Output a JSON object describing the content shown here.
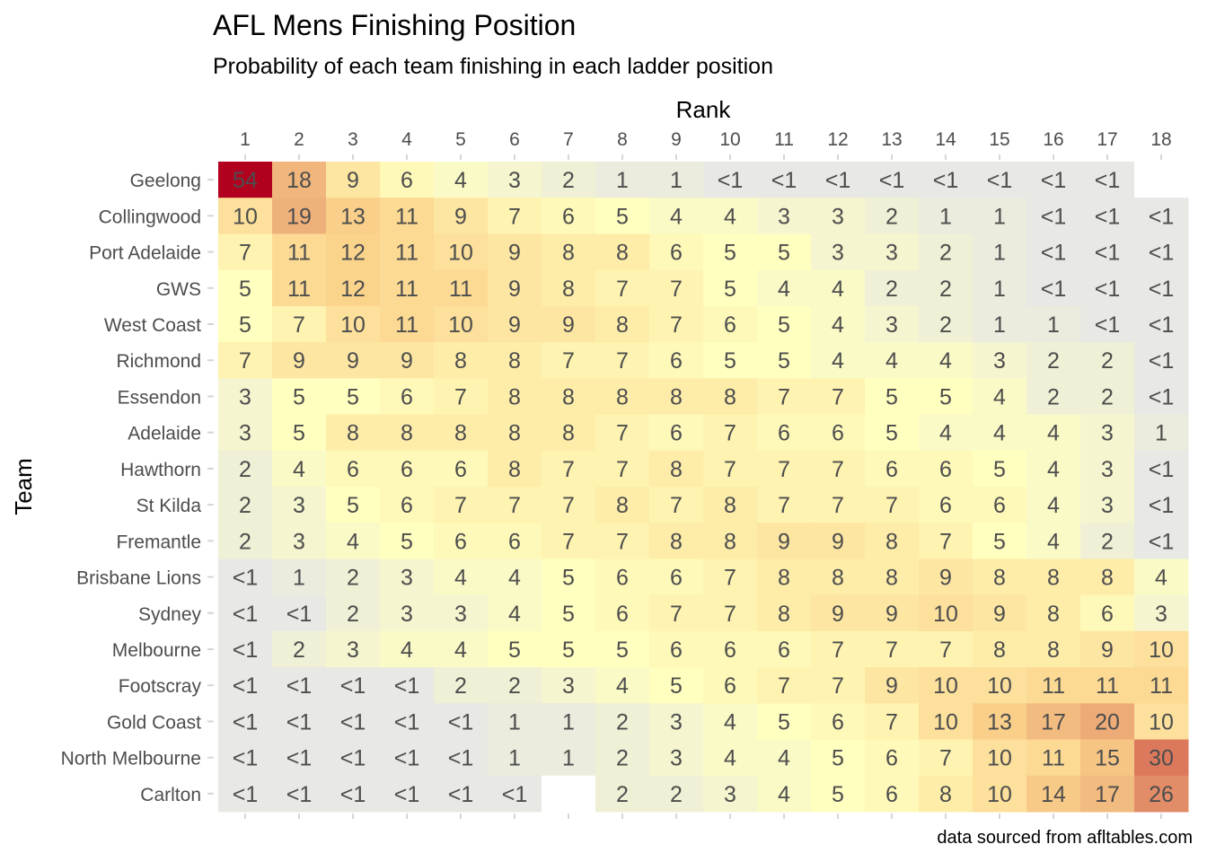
{
  "chart_data": {
    "type": "heatmap",
    "title": "AFL Mens Finishing Position",
    "subtitle": "Probability of each team finishing in each ladder position",
    "xlabel": "Rank",
    "ylabel": "Team",
    "caption": "data sourced from afltables.com",
    "x": [
      "1",
      "2",
      "3",
      "4",
      "5",
      "6",
      "7",
      "8",
      "9",
      "10",
      "11",
      "12",
      "13",
      "14",
      "15",
      "16",
      "17",
      "18"
    ],
    "y": [
      "Geelong",
      "Collingwood",
      "Port Adelaide",
      "GWS",
      "West Coast",
      "Richmond",
      "Essendon",
      "Adelaide",
      "Hawthorn",
      "St Kilda",
      "Fremantle",
      "Brisbane Lions",
      "Sydney",
      "Melbourne",
      "Footscray",
      "Gold Coast",
      "North Melbourne",
      "Carlton"
    ],
    "values": [
      [
        "54",
        "18",
        "9",
        "6",
        "4",
        "3",
        "2",
        "1",
        "1",
        "<1",
        "<1",
        "<1",
        "<1",
        "<1",
        "<1",
        "<1",
        "<1",
        ""
      ],
      [
        "10",
        "19",
        "13",
        "11",
        "9",
        "7",
        "6",
        "5",
        "4",
        "4",
        "3",
        "3",
        "2",
        "1",
        "1",
        "<1",
        "<1",
        "<1"
      ],
      [
        "7",
        "11",
        "12",
        "11",
        "10",
        "9",
        "8",
        "8",
        "6",
        "5",
        "5",
        "3",
        "3",
        "2",
        "1",
        "<1",
        "<1",
        "<1"
      ],
      [
        "5",
        "11",
        "12",
        "11",
        "11",
        "9",
        "8",
        "7",
        "7",
        "5",
        "4",
        "4",
        "2",
        "2",
        "1",
        "<1",
        "<1",
        "<1"
      ],
      [
        "5",
        "7",
        "10",
        "11",
        "10",
        "9",
        "9",
        "8",
        "7",
        "6",
        "5",
        "4",
        "3",
        "2",
        "1",
        "1",
        "<1",
        "<1"
      ],
      [
        "7",
        "9",
        "9",
        "9",
        "8",
        "8",
        "7",
        "7",
        "6",
        "5",
        "5",
        "4",
        "4",
        "4",
        "3",
        "2",
        "2",
        "<1"
      ],
      [
        "3",
        "5",
        "5",
        "6",
        "7",
        "8",
        "8",
        "8",
        "8",
        "8",
        "7",
        "7",
        "5",
        "5",
        "4",
        "2",
        "2",
        "<1"
      ],
      [
        "3",
        "5",
        "8",
        "8",
        "8",
        "8",
        "8",
        "7",
        "6",
        "7",
        "6",
        "6",
        "5",
        "4",
        "4",
        "4",
        "3",
        "1"
      ],
      [
        "2",
        "4",
        "6",
        "6",
        "6",
        "8",
        "7",
        "7",
        "8",
        "7",
        "7",
        "7",
        "6",
        "6",
        "5",
        "4",
        "3",
        "<1"
      ],
      [
        "2",
        "3",
        "5",
        "6",
        "7",
        "7",
        "7",
        "8",
        "7",
        "8",
        "7",
        "7",
        "7",
        "6",
        "6",
        "4",
        "3",
        "<1"
      ],
      [
        "2",
        "3",
        "4",
        "5",
        "6",
        "6",
        "7",
        "7",
        "8",
        "8",
        "9",
        "9",
        "8",
        "7",
        "5",
        "4",
        "2",
        "<1"
      ],
      [
        "<1",
        "1",
        "2",
        "3",
        "4",
        "4",
        "5",
        "6",
        "6",
        "7",
        "8",
        "8",
        "8",
        "9",
        "8",
        "8",
        "8",
        "4"
      ],
      [
        "<1",
        "<1",
        "2",
        "3",
        "3",
        "4",
        "5",
        "6",
        "7",
        "7",
        "8",
        "9",
        "9",
        "10",
        "9",
        "8",
        "6",
        "3"
      ],
      [
        "<1",
        "2",
        "3",
        "4",
        "4",
        "5",
        "5",
        "5",
        "6",
        "6",
        "6",
        "7",
        "7",
        "7",
        "8",
        "8",
        "9",
        "10"
      ],
      [
        "<1",
        "<1",
        "<1",
        "<1",
        "2",
        "2",
        "3",
        "4",
        "5",
        "6",
        "7",
        "7",
        "9",
        "10",
        "10",
        "11",
        "11",
        "11"
      ],
      [
        "<1",
        "<1",
        "<1",
        "<1",
        "<1",
        "1",
        "1",
        "2",
        "3",
        "4",
        "5",
        "6",
        "7",
        "10",
        "13",
        "17",
        "20",
        "10"
      ],
      [
        "<1",
        "<1",
        "<1",
        "<1",
        "<1",
        "1",
        "1",
        "2",
        "3",
        "4",
        "4",
        "5",
        "6",
        "7",
        "10",
        "11",
        "15",
        "30"
      ],
      [
        "<1",
        "<1",
        "<1",
        "<1",
        "<1",
        "<1",
        "",
        "2",
        "2",
        "3",
        "4",
        "5",
        "6",
        "8",
        "10",
        "14",
        "17",
        "26"
      ]
    ],
    "color_scale": {
      "low": "#e6e6e6",
      "mid": "#ffffbf",
      "mid2": "#fbd48c",
      "high": "#b2001f"
    },
    "grid": false
  }
}
